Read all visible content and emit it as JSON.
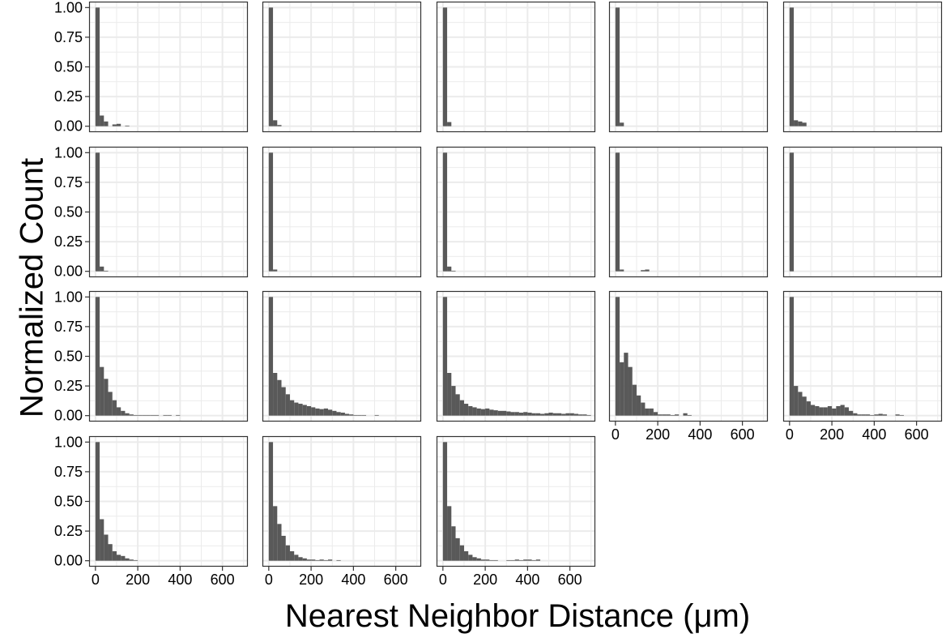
{
  "chart_data": {
    "type": "bar",
    "facet_layout": {
      "rows": 4,
      "cols": 5
    },
    "xlabel": "Nearest Neighbor Distance (μm)",
    "ylabel": "Normalized Count",
    "xlim": [
      -30,
      720
    ],
    "ylim": [
      -0.05,
      1.05
    ],
    "x_ticks": [
      0,
      200,
      400,
      600
    ],
    "x_tick_labels": [
      "0",
      "200",
      "400",
      "600"
    ],
    "y_ticks": [
      0,
      0.25,
      0.5,
      0.75,
      1.0
    ],
    "y_tick_labels": [
      "0.00",
      "0.25",
      "0.50",
      "0.75",
      "1.00"
    ],
    "grid": true,
    "bin_width": 20,
    "bin_starts": [
      0,
      20,
      40,
      60,
      80,
      100,
      120,
      140,
      160,
      180,
      200,
      220,
      240,
      260,
      280,
      300,
      320,
      340,
      360,
      380,
      400,
      420,
      440,
      460,
      480,
      500,
      520,
      540,
      560,
      580,
      600,
      620,
      640,
      660,
      680
    ],
    "colors": {
      "bar": "#595959",
      "grid": "#ebebeb",
      "panel_border": "#333333",
      "text": "#000000"
    },
    "panels": [
      {
        "row": 0,
        "col": 0,
        "values": [
          1.0,
          0.09,
          0.04,
          0.0,
          0.015,
          0.02,
          0.0,
          0.005
        ]
      },
      {
        "row": 0,
        "col": 1,
        "values": [
          1.0,
          0.05,
          0.01
        ]
      },
      {
        "row": 0,
        "col": 2,
        "values": [
          1.0,
          0.035
        ]
      },
      {
        "row": 0,
        "col": 3,
        "values": [
          1.0,
          0.03
        ]
      },
      {
        "row": 0,
        "col": 4,
        "values": [
          1.0,
          0.05,
          0.04,
          0.03
        ]
      },
      {
        "row": 1,
        "col": 0,
        "values": [
          1.0,
          0.04,
          0.005
        ]
      },
      {
        "row": 1,
        "col": 1,
        "values": [
          1.0,
          0.015
        ]
      },
      {
        "row": 1,
        "col": 2,
        "values": [
          1.0,
          0.04,
          0.005
        ]
      },
      {
        "row": 1,
        "col": 3,
        "values": [
          1.0,
          0.015,
          0.0,
          0.0,
          0.0,
          0.0,
          0.01,
          0.015
        ]
      },
      {
        "row": 1,
        "col": 4,
        "values": [
          1.0
        ]
      },
      {
        "row": 2,
        "col": 0,
        "values": [
          1.0,
          0.41,
          0.31,
          0.2,
          0.13,
          0.07,
          0.04,
          0.02,
          0.01,
          0.005,
          0.005,
          0.005,
          0.005,
          0.005,
          0.005,
          0.0,
          0.005,
          0.005,
          0.0,
          0.005
        ]
      },
      {
        "row": 2,
        "col": 1,
        "values": [
          1.0,
          0.36,
          0.3,
          0.24,
          0.18,
          0.13,
          0.11,
          0.1,
          0.09,
          0.08,
          0.07,
          0.06,
          0.055,
          0.06,
          0.05,
          0.04,
          0.03,
          0.025,
          0.015,
          0.01,
          0.005,
          0.005,
          0.005,
          0.0,
          0.0,
          0.005
        ]
      },
      {
        "row": 2,
        "col": 2,
        "values": [
          1.0,
          0.36,
          0.25,
          0.18,
          0.13,
          0.1,
          0.08,
          0.07,
          0.06,
          0.055,
          0.06,
          0.05,
          0.045,
          0.04,
          0.04,
          0.035,
          0.03,
          0.03,
          0.025,
          0.03,
          0.025,
          0.02,
          0.02,
          0.015,
          0.02,
          0.025,
          0.02,
          0.02,
          0.015,
          0.02,
          0.02,
          0.015,
          0.01,
          0.01,
          0.005
        ]
      },
      {
        "row": 2,
        "col": 3,
        "values": [
          1.0,
          0.45,
          0.53,
          0.41,
          0.26,
          0.17,
          0.11,
          0.06,
          0.06,
          0.03,
          0.01,
          0.01,
          0.01,
          0.005,
          0.01,
          0.0,
          0.02,
          0.005
        ]
      },
      {
        "row": 2,
        "col": 4,
        "values": [
          1.0,
          0.25,
          0.2,
          0.16,
          0.12,
          0.09,
          0.08,
          0.07,
          0.07,
          0.08,
          0.06,
          0.08,
          0.09,
          0.07,
          0.04,
          0.02,
          0.01,
          0.01,
          0.01,
          0.005,
          0.01,
          0.015,
          0.01,
          0.0,
          0.0,
          0.01,
          0.005
        ]
      },
      {
        "row": 3,
        "col": 0,
        "values": [
          1.0,
          0.35,
          0.22,
          0.14,
          0.08,
          0.05,
          0.04,
          0.02,
          0.01,
          0.005
        ]
      },
      {
        "row": 3,
        "col": 1,
        "values": [
          1.0,
          0.46,
          0.31,
          0.21,
          0.13,
          0.08,
          0.05,
          0.03,
          0.02,
          0.01,
          0.01,
          0.005,
          0.01,
          0.005,
          0.01,
          0.0,
          0.005
        ]
      },
      {
        "row": 3,
        "col": 2,
        "values": [
          1.0,
          0.46,
          0.29,
          0.19,
          0.13,
          0.08,
          0.05,
          0.03,
          0.02,
          0.01,
          0.01,
          0.005,
          0.005,
          0.0,
          0.0,
          0.005,
          0.005,
          0.01,
          0.005,
          0.01,
          0.01,
          0.005,
          0.01
        ]
      }
    ]
  }
}
